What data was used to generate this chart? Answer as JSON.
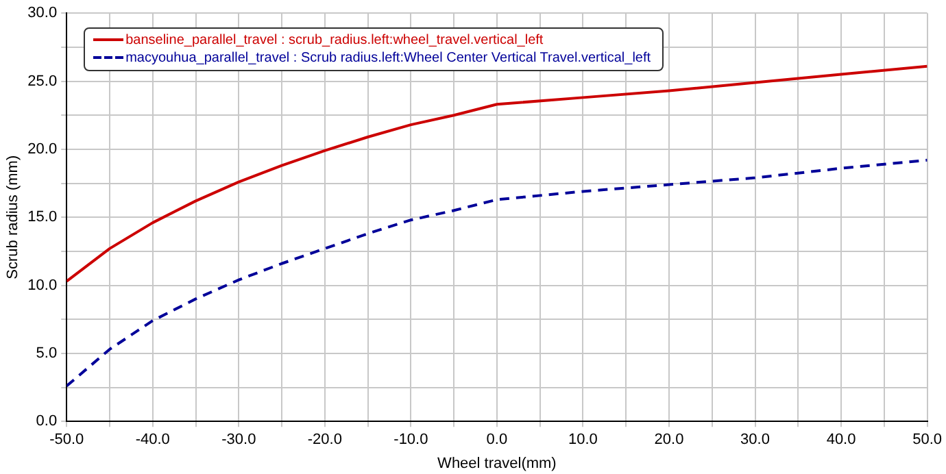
{
  "chart_data": {
    "type": "line",
    "xlabel": "Wheel travel(mm)",
    "ylabel": "Scrub radius (mm)",
    "x": [
      -50,
      -45,
      -40,
      -35,
      -30,
      -25,
      -20,
      -15,
      -10,
      -5,
      0,
      10,
      20,
      30,
      40,
      50
    ],
    "series": [
      {
        "name": "banseline_parallel_travel : scrub_radius.left:wheel_travel.vertical_left",
        "color": "#cc0000",
        "line_style": "solid",
        "values": [
          10.3,
          12.7,
          14.6,
          16.2,
          17.6,
          18.8,
          19.9,
          20.9,
          21.8,
          22.5,
          23.3,
          23.8,
          24.3,
          24.9,
          25.5,
          26.1
        ]
      },
      {
        "name": "macyouhua_parallel_travel : Scrub radius.left:Wheel Center Vertical Travel.vertical_left",
        "color": "#000099",
        "line_style": "dashed",
        "values": [
          2.6,
          5.3,
          7.4,
          9.0,
          10.4,
          11.6,
          12.7,
          13.8,
          14.8,
          15.5,
          16.3,
          16.9,
          17.4,
          17.9,
          18.6,
          19.2
        ]
      }
    ],
    "xlim": [
      -50,
      50
    ],
    "xticks": [
      {
        "value": -50,
        "label": "-50.0"
      },
      {
        "value": -45,
        "label": null
      },
      {
        "value": -40,
        "label": "-40.0"
      },
      {
        "value": -35,
        "label": null
      },
      {
        "value": -30,
        "label": "-30.0"
      },
      {
        "value": -25,
        "label": null
      },
      {
        "value": -20,
        "label": "-20.0"
      },
      {
        "value": -15,
        "label": null
      },
      {
        "value": -10,
        "label": "-10.0"
      },
      {
        "value": -5,
        "label": null
      },
      {
        "value": 0,
        "label": "0.0"
      },
      {
        "value": 5,
        "label": null
      },
      {
        "value": 10,
        "label": "10.0"
      },
      {
        "value": 15,
        "label": null
      },
      {
        "value": 20,
        "label": "20.0"
      },
      {
        "value": 25,
        "label": null
      },
      {
        "value": 30,
        "label": "30.0"
      },
      {
        "value": 35,
        "label": null
      },
      {
        "value": 40,
        "label": "40.0"
      },
      {
        "value": 45,
        "label": null
      },
      {
        "value": 50,
        "label": "50.0"
      }
    ],
    "ylim": [
      0,
      30
    ],
    "yticks": [
      {
        "value": 0,
        "label": "0.0"
      },
      {
        "value": 2.5,
        "label": null
      },
      {
        "value": 5,
        "label": "5.0"
      },
      {
        "value": 7.5,
        "label": null
      },
      {
        "value": 10,
        "label": "10.0"
      },
      {
        "value": 12.5,
        "label": null
      },
      {
        "value": 15,
        "label": "15.0"
      },
      {
        "value": 17.5,
        "label": null
      },
      {
        "value": 20,
        "label": "20.0"
      },
      {
        "value": 22.5,
        "label": null
      },
      {
        "value": 25,
        "label": "25.0"
      },
      {
        "value": 27.5,
        "label": null
      },
      {
        "value": 30,
        "label": "30.0"
      }
    ],
    "grid": true,
    "legend": "top left",
    "marker": "none"
  }
}
